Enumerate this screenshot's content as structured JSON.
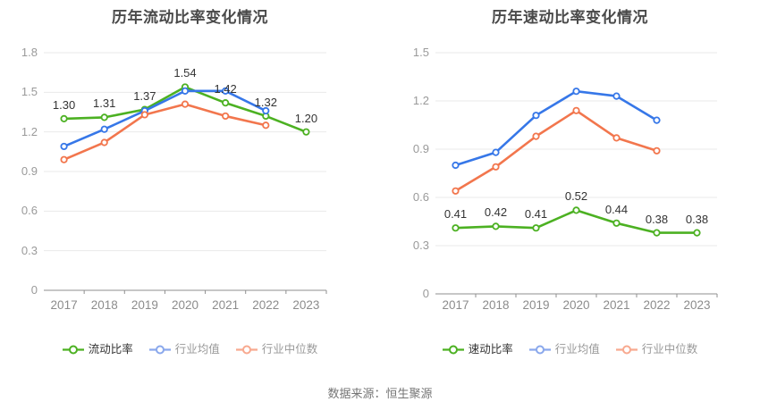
{
  "page": {
    "background": "#ffffff",
    "footer": "数据来源：恒生聚源"
  },
  "colors": {
    "grid": "#e9e9e9",
    "axis": "#8f8f8f",
    "title": "#4a4a4a",
    "y_tick_label": "#9a9a9a",
    "x_tick_label": "#8c8c8c",
    "data_label": "#333333",
    "legend_text_active": "#333333",
    "legend_text_muted": "#999999",
    "footer_text": "#757575",
    "series_green": "#4cb122",
    "series_blue": "#3677e8",
    "series_orange": "#f2764d"
  },
  "chart_data": [
    {
      "type": "line",
      "title": "历年流动比率变化情况",
      "categories": [
        "2017",
        "2018",
        "2019",
        "2020",
        "2021",
        "2022",
        "2023"
      ],
      "ylim": [
        0,
        1.8
      ],
      "ytick_labels": [
        "0",
        "0.3",
        "0.6",
        "0.9",
        "1.2",
        "1.5",
        "1.8"
      ],
      "grid": true,
      "legend_position": "bottom",
      "series": [
        {
          "name": "流动比率",
          "color": "#4cb122",
          "legend_color": "#4cb122",
          "values": [
            1.3,
            1.31,
            1.37,
            1.54,
            1.42,
            1.32,
            1.2
          ],
          "labels": [
            "1.30",
            "1.31",
            "1.37",
            "1.54",
            "1.42",
            "1.32",
            "1.20"
          ]
        },
        {
          "name": "行业均值",
          "color": "#3677e8",
          "legend_color": "#8aa8ec",
          "values": [
            1.09,
            1.22,
            1.36,
            1.51,
            1.51,
            1.36,
            null
          ]
        },
        {
          "name": "行业中位数",
          "color": "#f2764d",
          "legend_color": "#f8a98f",
          "values": [
            0.99,
            1.12,
            1.33,
            1.41,
            1.32,
            1.25,
            null
          ]
        }
      ]
    },
    {
      "type": "line",
      "title": "历年速动比率变化情况",
      "categories": [
        "2017",
        "2018",
        "2019",
        "2020",
        "2021",
        "2022",
        "2023"
      ],
      "ylim": [
        0,
        1.5
      ],
      "ytick_labels": [
        "0",
        "0.3",
        "0.6",
        "0.9",
        "1.2",
        "1.5"
      ],
      "grid": true,
      "legend_position": "bottom",
      "series": [
        {
          "name": "速动比率",
          "color": "#4cb122",
          "legend_color": "#4cb122",
          "values": [
            0.41,
            0.42,
            0.41,
            0.52,
            0.44,
            0.38,
            0.38
          ],
          "labels": [
            "0.41",
            "0.42",
            "0.41",
            "0.52",
            "0.44",
            "0.38",
            "0.38"
          ]
        },
        {
          "name": "行业均值",
          "color": "#3677e8",
          "legend_color": "#8aa8ec",
          "values": [
            0.8,
            0.88,
            1.11,
            1.26,
            1.23,
            1.08,
            null
          ]
        },
        {
          "name": "行业中位数",
          "color": "#f2764d",
          "legend_color": "#f8a98f",
          "values": [
            0.64,
            0.79,
            0.98,
            1.14,
            0.97,
            0.89,
            null
          ]
        }
      ]
    }
  ]
}
